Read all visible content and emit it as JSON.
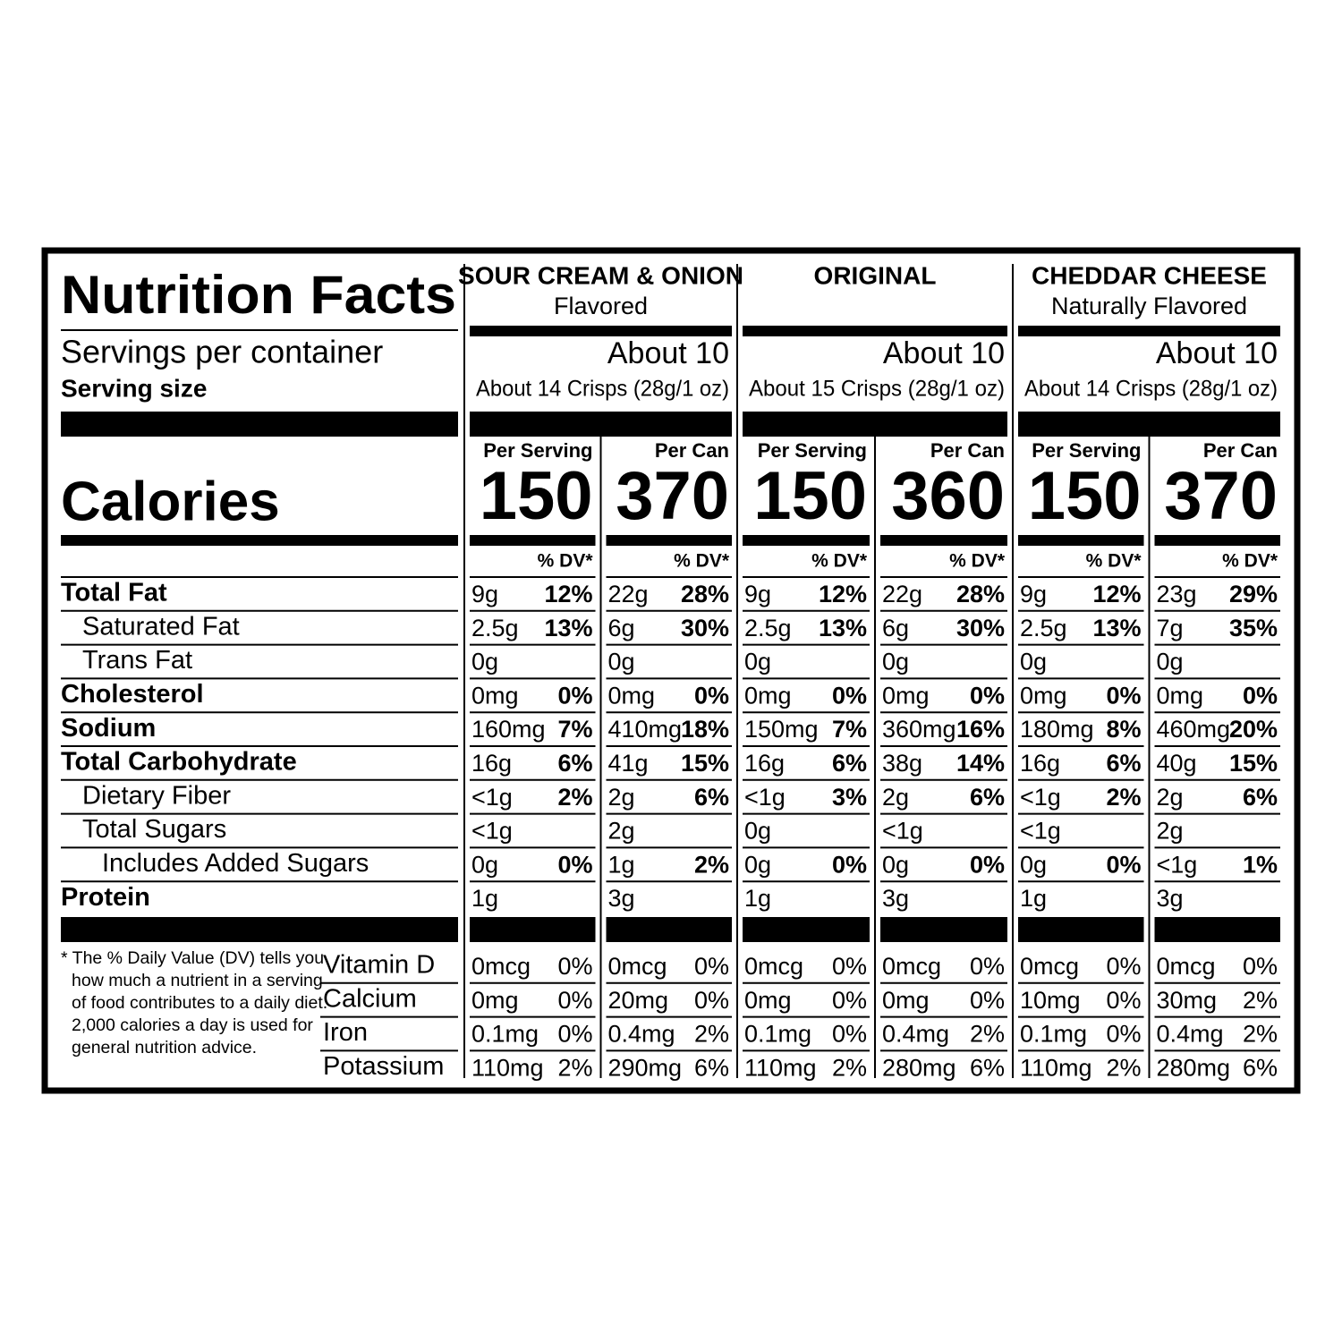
{
  "title": "Nutrition Facts",
  "servings_label": "Servings per container",
  "serving_size_label": "Serving size",
  "calories_label": "Calories",
  "dv_header": "% DV*",
  "nutrients": [
    "Total Fat",
    "Saturated Fat",
    "Trans Fat",
    "Cholesterol",
    "Sodium",
    "Total Carbohydrate",
    "Dietary Fiber",
    "Total Sugars",
    "Includes Added Sugars",
    "Protein"
  ],
  "vitamins": [
    "Vitamin D",
    "Calcium",
    "Iron",
    "Potassium"
  ],
  "footnote": [
    "* The % Daily Value (DV) tells you",
    "how much a nutrient in a serving",
    "of food contributes to a daily diet.",
    "2,000 calories a day is used for",
    "general nutrition advice."
  ],
  "products": [
    {
      "name": "SOUR CREAM & ONION",
      "subtitle": "Flavored",
      "servings": "About 10",
      "serving_size": "About 14 Crisps (28g/1 oz)",
      "columns": [
        {
          "label": "Per Serving",
          "calories": 150,
          "nutrients": [
            [
              "9g",
              "12%"
            ],
            [
              "2.5g",
              "13%"
            ],
            [
              "0g"
            ],
            [
              "0mg",
              "0%"
            ],
            [
              "160mg",
              "7%"
            ],
            [
              "16g",
              "6%"
            ],
            [
              "<1g",
              "2%"
            ],
            [
              "<1g"
            ],
            [
              "0g",
              "0%"
            ],
            [
              "1g"
            ]
          ],
          "vitamins": [
            [
              "0mcg",
              "0%"
            ],
            [
              "0mg",
              "0%"
            ],
            [
              "0.1mg",
              "0%"
            ],
            [
              "110mg",
              "2%"
            ]
          ]
        },
        {
          "label": "Per Can",
          "calories": 370,
          "nutrients": [
            [
              "22g",
              "28%"
            ],
            [
              "6g",
              "30%"
            ],
            [
              "0g"
            ],
            [
              "0mg",
              "0%"
            ],
            [
              "410mg",
              "18%"
            ],
            [
              "41g",
              "15%"
            ],
            [
              "2g",
              "6%"
            ],
            [
              "2g"
            ],
            [
              "1g",
              "2%"
            ],
            [
              "3g"
            ]
          ],
          "vitamins": [
            [
              "0mcg",
              "0%"
            ],
            [
              "20mg",
              "0%"
            ],
            [
              "0.4mg",
              "2%"
            ],
            [
              "290mg",
              "6%"
            ]
          ]
        }
      ]
    },
    {
      "name": "ORIGINAL",
      "servings": "About 10",
      "serving_size": "About 15 Crisps (28g/1 oz)",
      "columns": [
        {
          "label": "Per Serving",
          "calories": 150,
          "nutrients": [
            [
              "9g",
              "12%"
            ],
            [
              "2.5g",
              "13%"
            ],
            [
              "0g"
            ],
            [
              "0mg",
              "0%"
            ],
            [
              "150mg",
              "7%"
            ],
            [
              "16g",
              "6%"
            ],
            [
              "<1g",
              "3%"
            ],
            [
              "0g"
            ],
            [
              "0g",
              "0%"
            ],
            [
              "1g"
            ]
          ],
          "vitamins": [
            [
              "0mcg",
              "0%"
            ],
            [
              "0mg",
              "0%"
            ],
            [
              "0.1mg",
              "0%"
            ],
            [
              "110mg",
              "2%"
            ]
          ]
        },
        {
          "label": "Per Can",
          "calories": 360,
          "nutrients": [
            [
              "22g",
              "28%"
            ],
            [
              "6g",
              "30%"
            ],
            [
              "0g"
            ],
            [
              "0mg",
              "0%"
            ],
            [
              "360mg",
              "16%"
            ],
            [
              "38g",
              "14%"
            ],
            [
              "2g",
              "6%"
            ],
            [
              "<1g"
            ],
            [
              "0g",
              "0%"
            ],
            [
              "3g"
            ]
          ],
          "vitamins": [
            [
              "0mcg",
              "0%"
            ],
            [
              "0mg",
              "0%"
            ],
            [
              "0.4mg",
              "2%"
            ],
            [
              "280mg",
              "6%"
            ]
          ]
        }
      ]
    },
    {
      "name": "CHEDDAR CHEESE",
      "subtitle": "Naturally Flavored",
      "servings": "About 10",
      "serving_size": "About 14 Crisps (28g/1 oz)",
      "columns": [
        {
          "label": "Per Serving",
          "calories": 150,
          "nutrients": [
            [
              "9g",
              "12%"
            ],
            [
              "2.5g",
              "13%"
            ],
            [
              "0g"
            ],
            [
              "0mg",
              "0%"
            ],
            [
              "180mg",
              "8%"
            ],
            [
              "16g",
              "6%"
            ],
            [
              "<1g",
              "2%"
            ],
            [
              "<1g"
            ],
            [
              "0g",
              "0%"
            ],
            [
              "1g"
            ]
          ],
          "vitamins": [
            [
              "0mcg",
              "0%"
            ],
            [
              "10mg",
              "0%"
            ],
            [
              "0.1mg",
              "0%"
            ],
            [
              "110mg",
              "2%"
            ]
          ]
        },
        {
          "label": "Per Can",
          "calories": 370,
          "nutrients": [
            [
              "23g",
              "29%"
            ],
            [
              "7g",
              "35%"
            ],
            [
              "0g"
            ],
            [
              "0mg",
              "0%"
            ],
            [
              "460mg",
              "20%"
            ],
            [
              "40g",
              "15%"
            ],
            [
              "2g",
              "6%"
            ],
            [
              "2g"
            ],
            [
              "<1g",
              "1%"
            ],
            [
              "3g"
            ]
          ],
          "vitamins": [
            [
              "0mcg",
              "0%"
            ],
            [
              "30mg",
              "2%"
            ],
            [
              "0.4mg",
              "2%"
            ],
            [
              "280mg",
              "6%"
            ]
          ]
        }
      ]
    }
  ]
}
